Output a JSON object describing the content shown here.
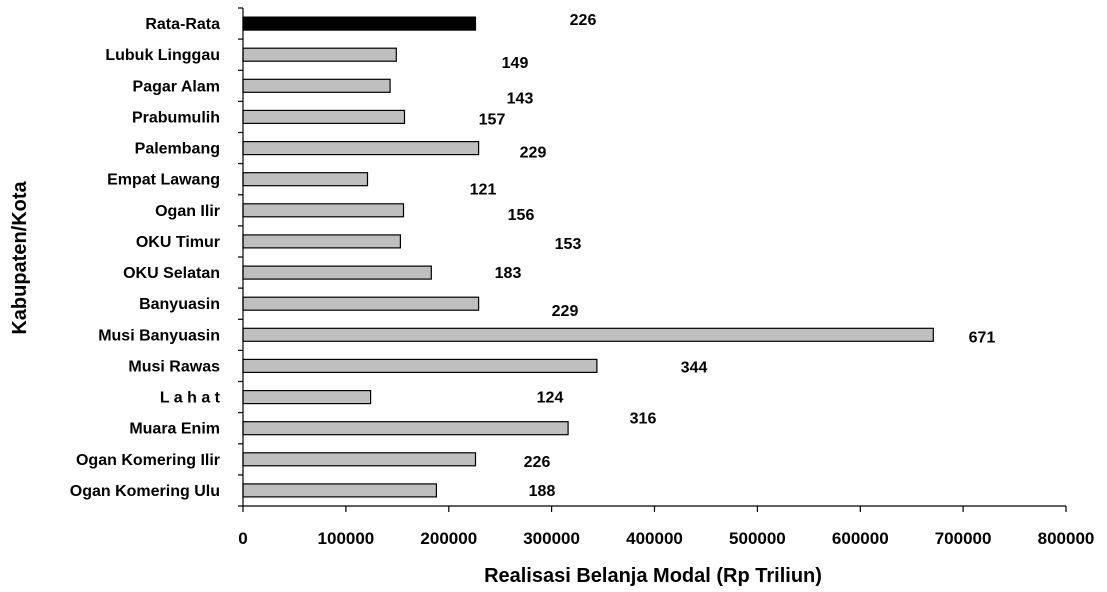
{
  "chart_data": {
    "type": "bar",
    "orientation": "horizontal",
    "categories": [
      "Rata-Rata",
      "Lubuk Linggau",
      "Pagar Alam",
      "Prabumulih",
      "Palembang",
      "Empat Lawang",
      "Ogan Ilir",
      "OKU Timur",
      "OKU Selatan",
      "Banyuasin",
      "Musi Banyuasin",
      "Musi Rawas",
      "L a h a t",
      "Muara Enim",
      "Ogan Komering Ilir",
      "Ogan Komering Ulu"
    ],
    "values": [
      226000,
      149000,
      143000,
      157000,
      229000,
      121000,
      156000,
      153000,
      183000,
      229000,
      671000,
      344000,
      124000,
      316000,
      226000,
      188000
    ],
    "data_labels": [
      "226",
      "149",
      "143",
      "157",
      "229",
      "121",
      "156",
      "153",
      "183",
      "229",
      "671",
      "344",
      "124",
      "316",
      "226",
      "188"
    ],
    "highlight_colors": [
      "#000000",
      "#bfbfbf",
      "#bfbfbf",
      "#bfbfbf",
      "#bfbfbf",
      "#bfbfbf",
      "#bfbfbf",
      "#bfbfbf",
      "#bfbfbf",
      "#bfbfbf",
      "#bfbfbf",
      "#bfbfbf",
      "#bfbfbf",
      "#bfbfbf",
      "#bfbfbf",
      "#bfbfbf"
    ],
    "xticks": [
      "0",
      "100000",
      "200000",
      "300000",
      "400000",
      "500000",
      "600000",
      "700000",
      "800000"
    ],
    "xlim": [
      0,
      800000
    ],
    "xlabel": "Realisasi Belanja Modal (Rp Triliun)",
    "ylabel": "Kabupaten/Kota",
    "title": "",
    "grid": false,
    "legend": "none"
  }
}
